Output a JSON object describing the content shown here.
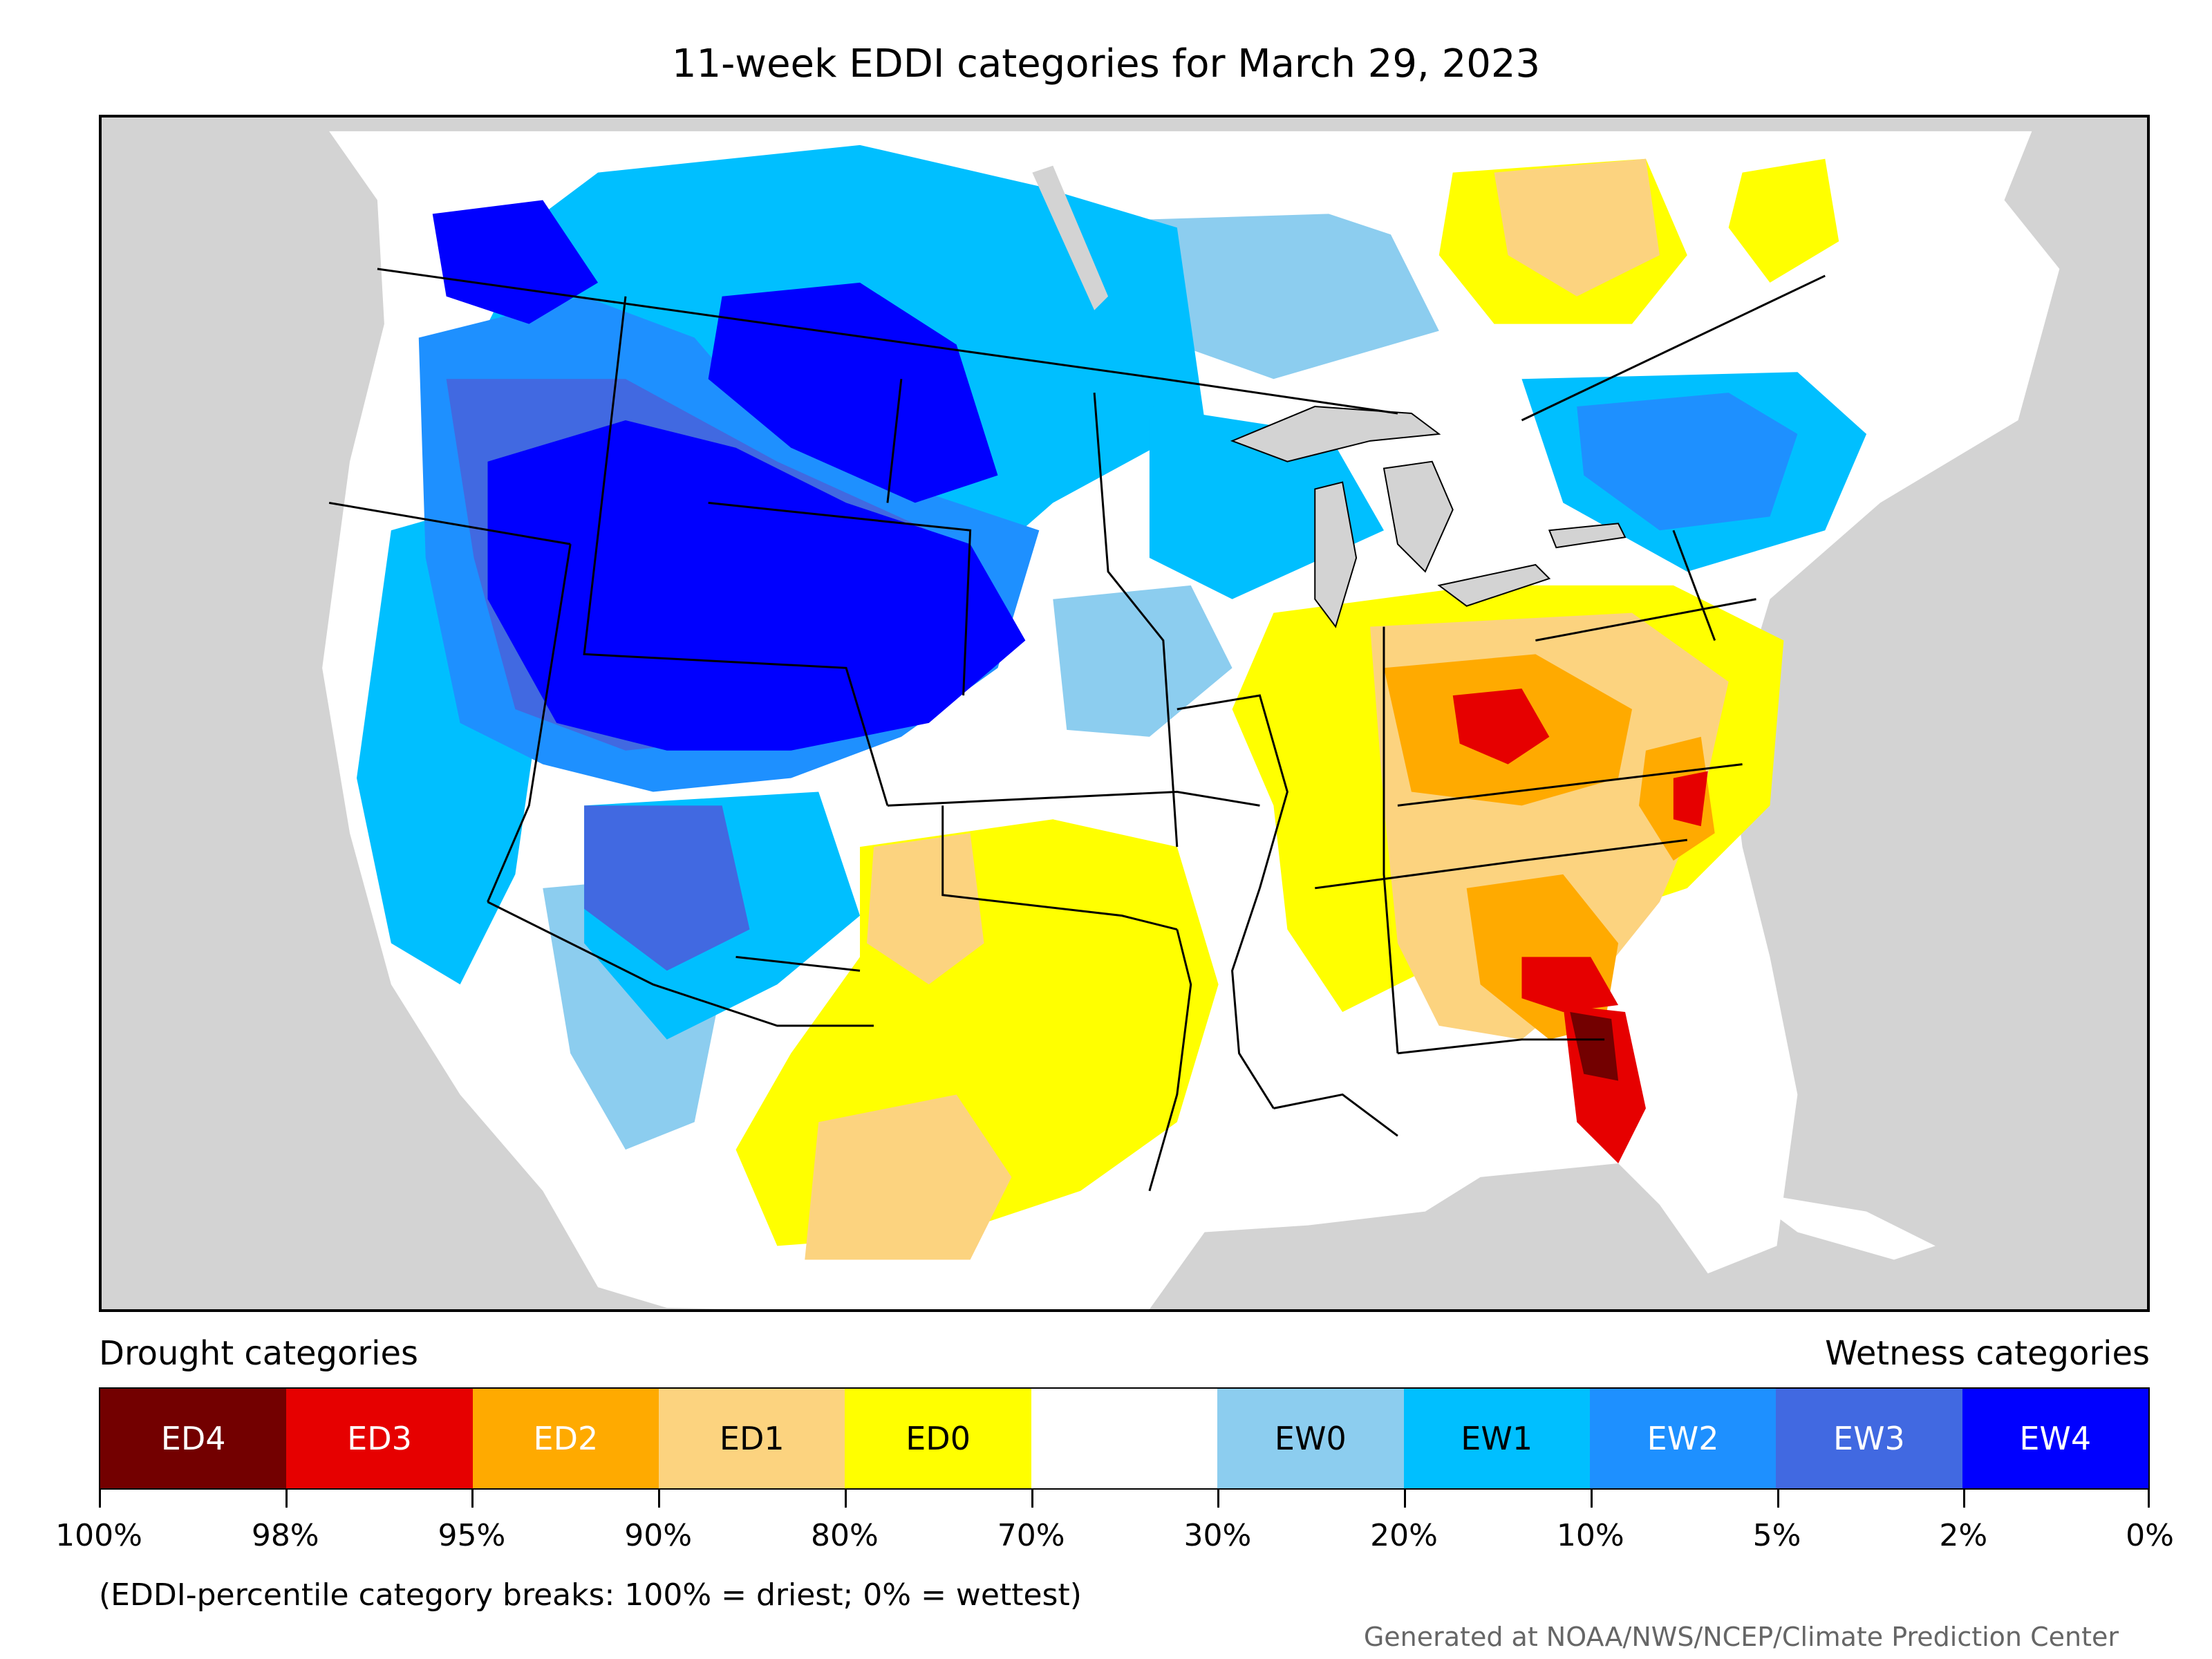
{
  "title": "11-week EDDI categories for March 29, 2023",
  "legend": {
    "drought_label": "Drought categories",
    "wetness_label": "Wetness categories",
    "categories": [
      {
        "label": "ED4",
        "color": "#730000",
        "text_color": "#ffffff"
      },
      {
        "label": "ED3",
        "color": "#e60000",
        "text_color": "#ffffff"
      },
      {
        "label": "ED2",
        "color": "#ffaa00",
        "text_color": "#ffffff"
      },
      {
        "label": "ED1",
        "color": "#fcd37f",
        "text_color": "#000000"
      },
      {
        "label": "ED0",
        "color": "#ffff00",
        "text_color": "#000000"
      },
      {
        "label": "",
        "color": "#ffffff",
        "text_color": "#000000"
      },
      {
        "label": "EW0",
        "color": "#8ccdef",
        "text_color": "#000000"
      },
      {
        "label": "EW1",
        "color": "#00bfff",
        "text_color": "#000000"
      },
      {
        "label": "EW2",
        "color": "#1e90ff",
        "text_color": "#ffffff"
      },
      {
        "label": "EW3",
        "color": "#4169e1",
        "text_color": "#ffffff"
      },
      {
        "label": "EW4",
        "color": "#0000ff",
        "text_color": "#ffffff"
      }
    ],
    "tick_labels": [
      "100%",
      "98%",
      "95%",
      "90%",
      "80%",
      "70%",
      "30%",
      "20%",
      "10%",
      "5%",
      "2%",
      "0%"
    ]
  },
  "note": "(EDDI-percentile category breaks: 100% = driest; 0% = wettest)",
  "credit": "Generated at NOAA/NWS/NCEP/Climate Prediction Center",
  "map_colors": {
    "ocean": "#d3d3d3",
    "lakes": "#d3d3d3",
    "boundaries": "#000000"
  }
}
